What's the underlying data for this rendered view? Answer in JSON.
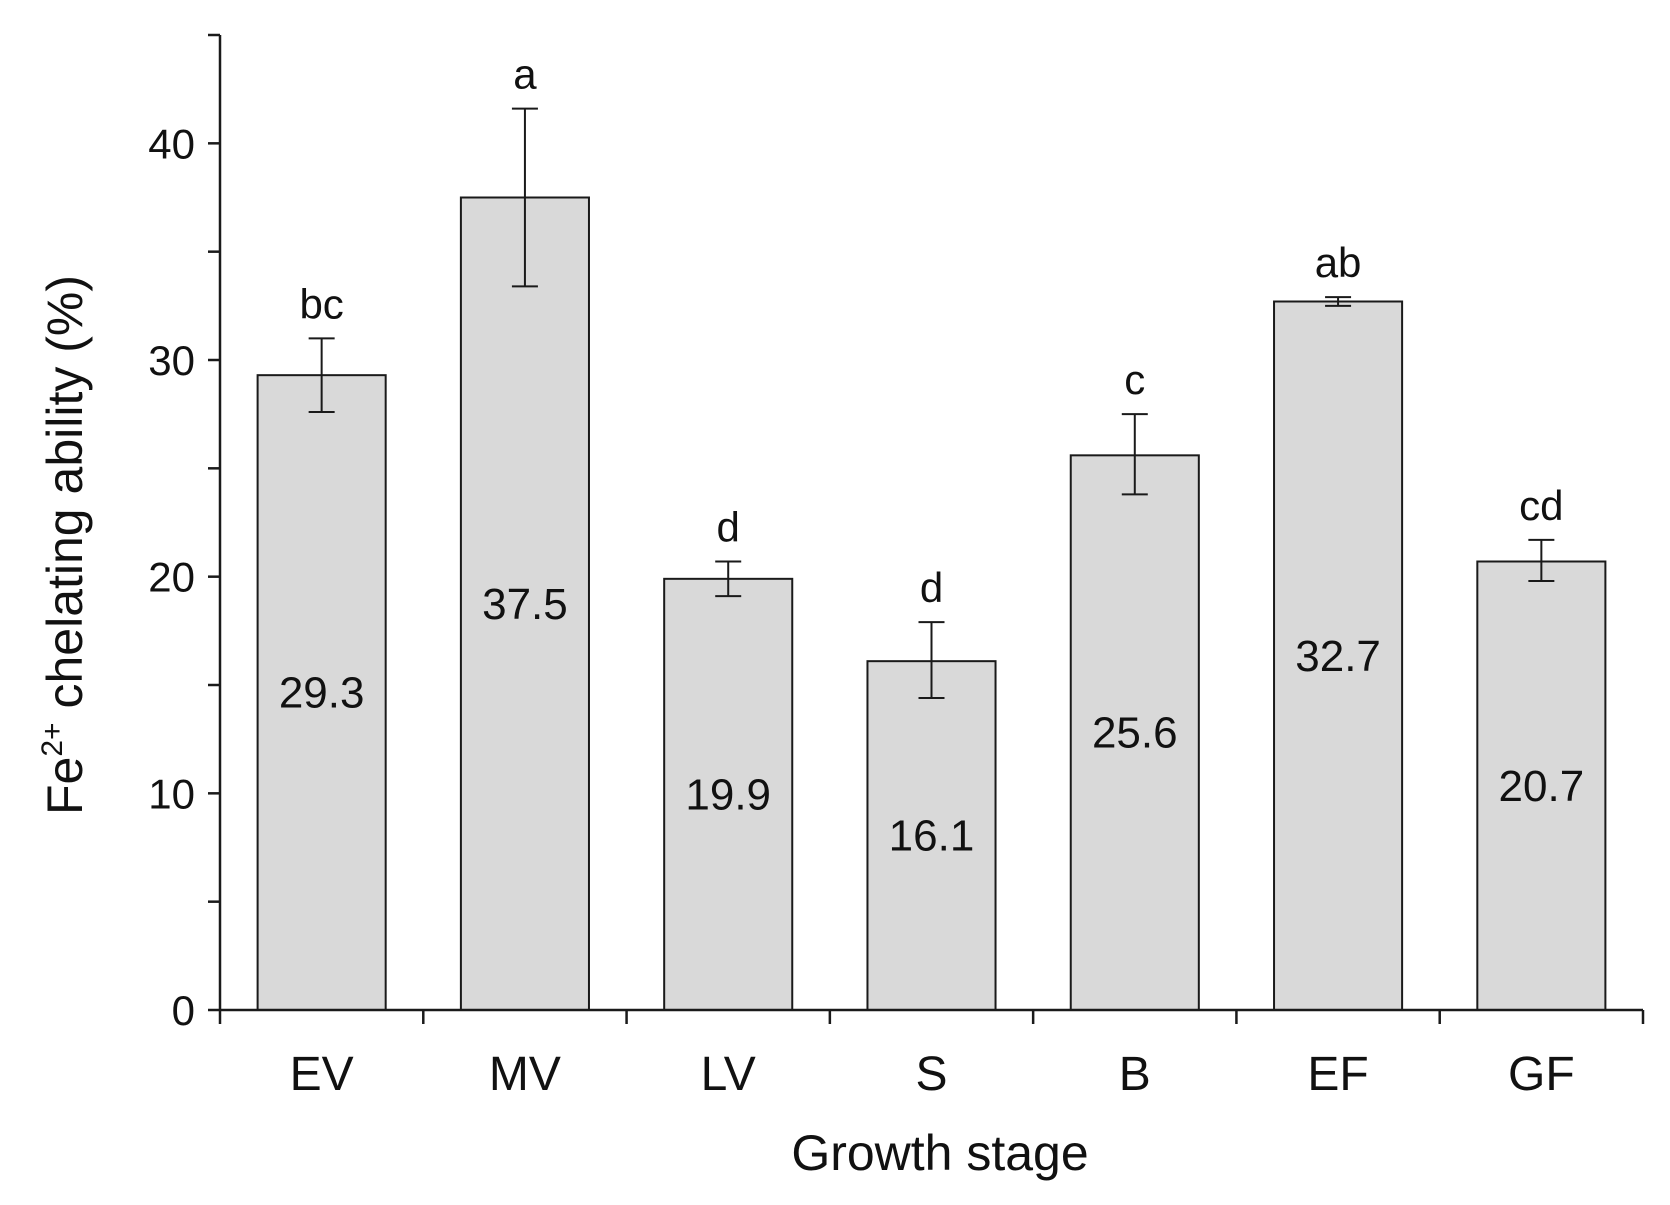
{
  "chart_data": {
    "type": "bar",
    "title": "",
    "xlabel": "Growth stage",
    "ylabel_main": "Fe",
    "ylabel_sup": "2+",
    "ylabel_rest": " chelating ability (%)",
    "ylim": [
      0,
      45
    ],
    "yticks": [
      0,
      10,
      20,
      30,
      40
    ],
    "ytick_labels": [
      "0",
      "10",
      "20",
      "30",
      "40"
    ],
    "minor_tick_step": 5,
    "grid": false,
    "categories": [
      "EV",
      "MV",
      "LV",
      "S",
      "B",
      "EF",
      "GF"
    ],
    "values": [
      29.3,
      37.5,
      19.9,
      16.1,
      25.6,
      32.7,
      20.7
    ],
    "value_labels": [
      "29.3",
      "37.5",
      "19.9",
      "16.1",
      "25.6",
      "32.7",
      "20.7"
    ],
    "error_low": [
      27.6,
      33.4,
      19.1,
      14.4,
      23.8,
      32.5,
      19.8
    ],
    "error_high": [
      31.0,
      41.6,
      20.7,
      17.9,
      27.5,
      32.9,
      21.7
    ],
    "significance": [
      "bc",
      "a",
      "d",
      "d",
      "c",
      "ab",
      "cd"
    ],
    "colors": {
      "bar_fill": "#d9d9d9",
      "bar_stroke": "#1a1a1a",
      "axis": "#1a1a1a",
      "text": "#111111"
    }
  }
}
